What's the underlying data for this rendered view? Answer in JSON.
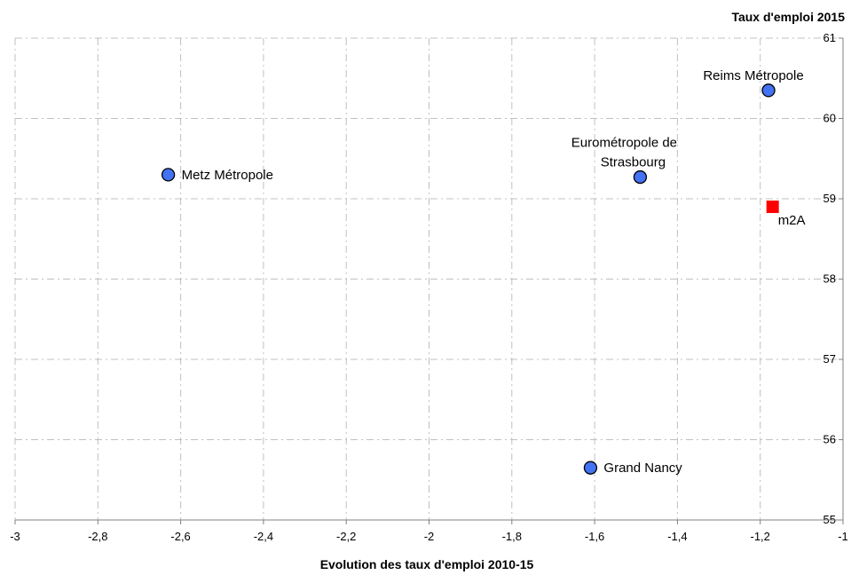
{
  "chart_data": {
    "type": "scatter",
    "xlabel": "Evolution des taux d'emploi 2010-15",
    "ylabel": "Taux d'emploi 2015",
    "xlim": [
      -3,
      -1
    ],
    "ylim": [
      55,
      61
    ],
    "x_ticks": [
      -3,
      -2.8,
      -2.6,
      -2.4,
      -2.2,
      -2,
      -1.8,
      -1.6,
      -1.4,
      -1.2,
      -1
    ],
    "x_tick_labels": [
      "-3",
      "-2,8",
      "-2,6",
      "-2,4",
      "-2,2",
      "-2",
      "-1,8",
      "-1,6",
      "-1,4",
      "-1,2",
      "-1"
    ],
    "y_ticks": [
      55,
      56,
      57,
      58,
      59,
      60,
      61
    ],
    "y_tick_labels": [
      "55",
      "56",
      "57",
      "58",
      "59",
      "60",
      "61"
    ],
    "grid": true,
    "y_axis_position": "right",
    "points": [
      {
        "label": "Reims Métropole",
        "x": -1.18,
        "y": 60.35,
        "marker": "circle",
        "color": "#4472f4",
        "label_lines": [
          "Reims Métropole"
        ],
        "label_position": "above"
      },
      {
        "label": "Metz Métropole",
        "x": -2.63,
        "y": 59.3,
        "marker": "circle",
        "color": "#4472f4",
        "label_lines": [
          "Metz Métropole"
        ],
        "label_position": "right"
      },
      {
        "label": "Eurométropole de Strasbourg",
        "x": -1.49,
        "y": 59.27,
        "marker": "circle",
        "color": "#4472f4",
        "label_lines": [
          "Eurométropole de",
          "Strasbourg"
        ],
        "label_position": "above"
      },
      {
        "label": "m2A",
        "x": -1.17,
        "y": 58.9,
        "marker": "square",
        "color": "#ff0000",
        "label_lines": [
          "m2A"
        ],
        "label_position": "below-right"
      },
      {
        "label": "Grand Nancy",
        "x": -1.61,
        "y": 55.65,
        "marker": "circle",
        "color": "#4472f4",
        "label_lines": [
          "Grand Nancy"
        ],
        "label_position": "right"
      }
    ]
  }
}
